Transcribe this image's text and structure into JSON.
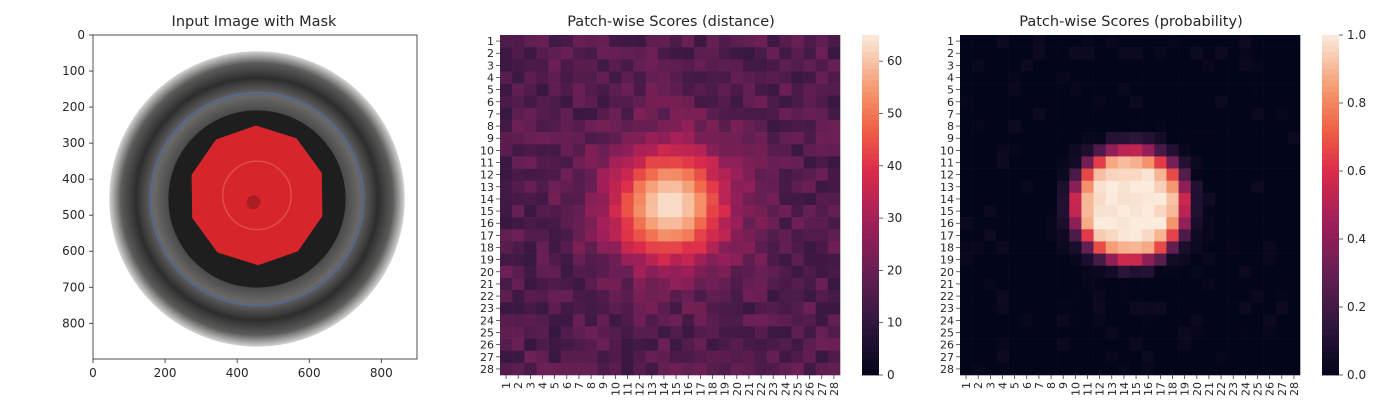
{
  "chart_data": [
    {
      "type": "image",
      "title": "Input Image with Mask",
      "xlim": [
        0,
        899
      ],
      "ylim": [
        899,
        0
      ],
      "xticks": [
        0,
        200,
        400,
        600,
        800
      ],
      "yticks": [
        0,
        100,
        200,
        300,
        400,
        500,
        600,
        700,
        800
      ],
      "mask_color": "#d7262b",
      "mask_center": [
        455,
        445
      ],
      "mask_radius": 190,
      "container_center": [
        455,
        455
      ],
      "container_radius": 410,
      "container_color": "#6e6c6b"
    },
    {
      "type": "heatmap",
      "title": "Patch-wise Scores (distance)",
      "n": 28,
      "tick_labels": [
        "1",
        "2",
        "3",
        "4",
        "5",
        "6",
        "7",
        "8",
        "9",
        "10",
        "11",
        "12",
        "13",
        "14",
        "15",
        "16",
        "17",
        "18",
        "19",
        "20",
        "21",
        "22",
        "23",
        "24",
        "25",
        "26",
        "27",
        "28"
      ],
      "colorbar": {
        "min": 0,
        "max": 65,
        "ticks": [
          0,
          10,
          20,
          30,
          40,
          50,
          60
        ]
      },
      "colormap": "rocket",
      "hotspot_center": [
        14.5,
        14.5
      ],
      "hotspot_peak": 64,
      "background_level": 16
    },
    {
      "type": "heatmap",
      "title": "Patch-wise Scores (probability)",
      "n": 28,
      "tick_labels": [
        "1",
        "2",
        "3",
        "4",
        "5",
        "6",
        "7",
        "8",
        "9",
        "10",
        "11",
        "12",
        "13",
        "14",
        "15",
        "16",
        "17",
        "18",
        "19",
        "20",
        "21",
        "22",
        "23",
        "24",
        "25",
        "26",
        "27",
        "28"
      ],
      "colorbar": {
        "min": 0.0,
        "max": 1.0,
        "ticks": [
          "0.0",
          "0.2",
          "0.4",
          "0.6",
          "0.8",
          "1.0"
        ]
      },
      "colormap": "rocket",
      "hotspot_center": [
        14.5,
        14.5
      ],
      "hotspot_peak": 1.0,
      "background_level": 0.0
    }
  ]
}
